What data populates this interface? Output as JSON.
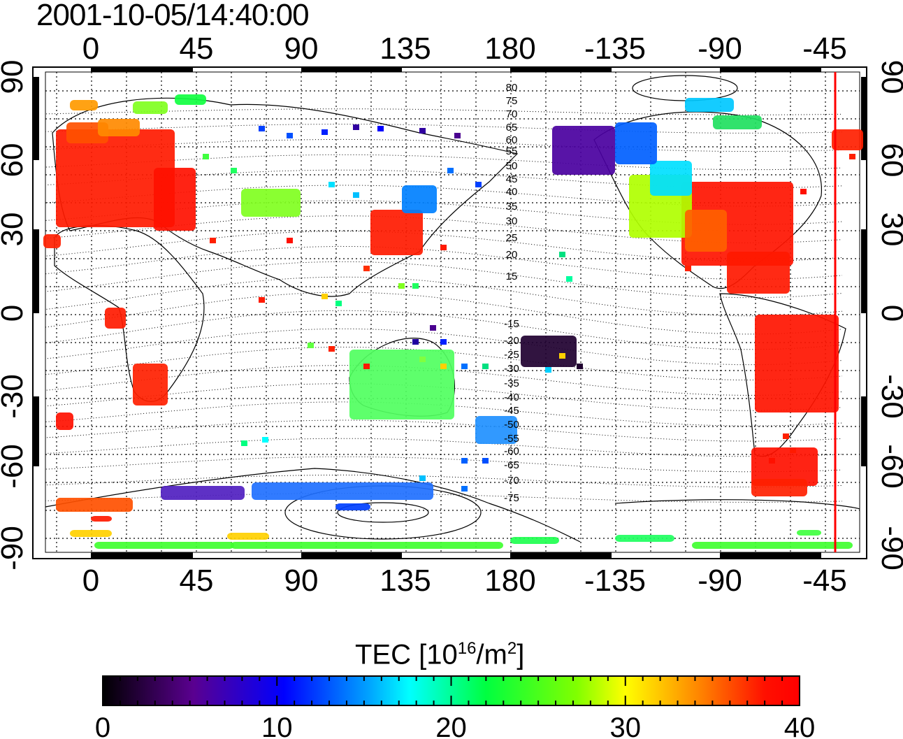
{
  "header": {
    "timestamp": "2001-10-05/14:40:00"
  },
  "map": {
    "top_lon_ticks": [
      "0",
      "45",
      "90",
      "135",
      "180",
      "-135",
      "-90",
      "-45"
    ],
    "bottom_lon_ticks": [
      "0",
      "45",
      "90",
      "135",
      "180",
      "-135",
      "-90",
      "-45"
    ],
    "left_lat_ticks": [
      "90",
      "60",
      "30",
      "0",
      "-30",
      "-60",
      "-90"
    ],
    "right_lat_ticks": [
      "90",
      "60",
      "30",
      "0",
      "-30",
      "-60",
      "-90"
    ],
    "geomag_north_labels": [
      "80",
      "75",
      "70",
      "65",
      "60",
      "55",
      "50",
      "45",
      "40",
      "35",
      "30",
      "25",
      "20",
      "15"
    ],
    "geomag_south_labels": [
      "-15",
      "-20",
      "-25",
      "-30",
      "-35",
      "-40",
      "-45",
      "-50",
      "-55",
      "-60",
      "-65",
      "-70",
      "-75"
    ],
    "terminator_color": "#ff0000"
  },
  "colorbar": {
    "title_prefix": "TEC  [10",
    "title_exp": "16",
    "title_mid": "/m",
    "title_exp2": "2",
    "title_suffix": "]",
    "tick_labels": [
      "0",
      "10",
      "20",
      "30",
      "40"
    ],
    "range": [
      0,
      40
    ],
    "colormap": [
      "#000000",
      "#5a0090",
      "#0000ff",
      "#00ffff",
      "#00ff00",
      "#ffff00",
      "#ff8000",
      "#ff0000"
    ]
  }
}
